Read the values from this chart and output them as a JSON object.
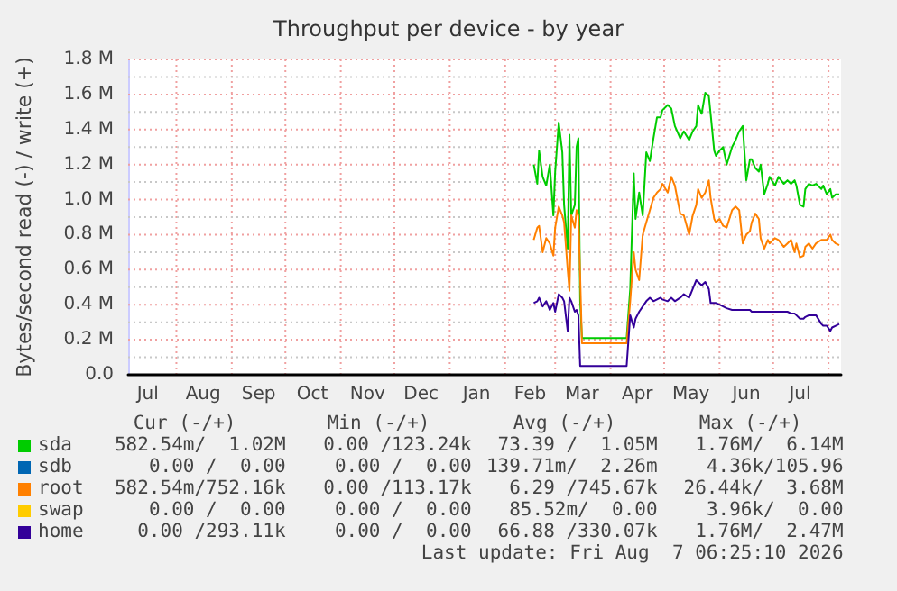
{
  "chart_data": {
    "type": "line",
    "title": "Throughput per device - by year",
    "ylabel": "Bytes/second read (-) / write (+)",
    "x": [
      "2026-02-17",
      "2026-02-19",
      "2026-02-20",
      "2026-02-22",
      "2026-02-24",
      "2026-02-26",
      "2026-02-28",
      "2026-03-01",
      "2026-03-03",
      "2026-03-05",
      "2026-03-06",
      "2026-03-08",
      "2026-03-09",
      "2026-03-10",
      "2026-03-12",
      "2026-03-13",
      "2026-03-14",
      "2026-03-15",
      "2026-03-16",
      "2026-04-10",
      "2026-04-12",
      "2026-04-14",
      "2026-04-15",
      "2026-04-17",
      "2026-04-19",
      "2026-04-21",
      "2026-04-23",
      "2026-04-25",
      "2026-04-27",
      "2026-04-29",
      "2026-04-30",
      "2026-05-03",
      "2026-05-05",
      "2026-05-07",
      "2026-05-10",
      "2026-05-12",
      "2026-05-15",
      "2026-05-17",
      "2026-05-19",
      "2026-05-20",
      "2026-05-22",
      "2026-05-24",
      "2026-05-26",
      "2026-05-27",
      "2026-05-29",
      "2026-05-30",
      "2026-06-01",
      "2026-06-03",
      "2026-06-05",
      "2026-06-08",
      "2026-06-10",
      "2026-06-12",
      "2026-06-14",
      "2026-06-16",
      "2026-06-18",
      "2026-06-19",
      "2026-06-21",
      "2026-06-23",
      "2026-06-24",
      "2026-06-26",
      "2026-06-28",
      "2026-06-29",
      "2026-07-02",
      "2026-07-04",
      "2026-07-07",
      "2026-07-09",
      "2026-07-11",
      "2026-07-13",
      "2026-07-14",
      "2026-07-16",
      "2026-07-18",
      "2026-07-19",
      "2026-07-21",
      "2026-07-23",
      "2026-07-25",
      "2026-07-28",
      "2026-07-29",
      "2026-07-31",
      "2026-08-02",
      "2026-08-03",
      "2026-08-05",
      "2026-08-07"
    ],
    "series": [
      {
        "name": "sda",
        "color": "#00cc00",
        "values": [
          1200000,
          1090000,
          1280000,
          1130000,
          1080000,
          1200000,
          910000,
          1160000,
          1440000,
          1270000,
          970000,
          720000,
          1370000,
          910000,
          970000,
          1300000,
          1350000,
          420000,
          210000,
          210000,
          490000,
          1150000,
          890000,
          1040000,
          910000,
          1270000,
          1220000,
          1350000,
          1470000,
          1470000,
          1510000,
          1540000,
          1520000,
          1420000,
          1350000,
          1390000,
          1340000,
          1390000,
          1420000,
          1540000,
          1490000,
          1610000,
          1590000,
          1490000,
          1280000,
          1250000,
          1280000,
          1300000,
          1200000,
          1300000,
          1340000,
          1390000,
          1420000,
          1110000,
          1230000,
          1230000,
          1180000,
          1160000,
          1200000,
          1030000,
          1090000,
          1130000,
          1080000,
          1130000,
          1090000,
          1110000,
          1090000,
          1110000,
          1080000,
          970000,
          960000,
          1060000,
          1090000,
          1080000,
          1090000,
          1060000,
          1080000,
          1030000,
          1060000,
          1010000,
          1030000,
          1030000
        ]
      },
      {
        "name": "sdb",
        "color": "#0066b3",
        "values": [
          null,
          null,
          null,
          null,
          null,
          null,
          null,
          null,
          null,
          null,
          null,
          null,
          null,
          null,
          null,
          null,
          null,
          null,
          null,
          null,
          null,
          null,
          null,
          null,
          null,
          null,
          null,
          null,
          null,
          null,
          null,
          null,
          null,
          null,
          null,
          null,
          null,
          null,
          null,
          null,
          null,
          null,
          null,
          null,
          null,
          null,
          null,
          null,
          null,
          null,
          null,
          null,
          null,
          null,
          null,
          null,
          null,
          null,
          null,
          null,
          null,
          null,
          null,
          null,
          null,
          null,
          null,
          null,
          null,
          null,
          null,
          null,
          null,
          null,
          null,
          null,
          null,
          null,
          null,
          null,
          null,
          null
        ]
      },
      {
        "name": "root",
        "color": "#ff8000",
        "values": [
          770000,
          840000,
          850000,
          700000,
          780000,
          750000,
          680000,
          840000,
          960000,
          910000,
          870000,
          600000,
          480000,
          910000,
          840000,
          940000,
          910000,
          560000,
          180000,
          180000,
          420000,
          700000,
          600000,
          540000,
          800000,
          870000,
          940000,
          1010000,
          1040000,
          1060000,
          1090000,
          1040000,
          1130000,
          1080000,
          920000,
          910000,
          800000,
          910000,
          970000,
          1060000,
          1010000,
          1040000,
          1110000,
          1010000,
          890000,
          870000,
          890000,
          850000,
          840000,
          940000,
          960000,
          940000,
          750000,
          800000,
          820000,
          870000,
          920000,
          890000,
          780000,
          720000,
          770000,
          750000,
          780000,
          770000,
          730000,
          750000,
          770000,
          700000,
          750000,
          670000,
          680000,
          730000,
          750000,
          720000,
          750000,
          770000,
          770000,
          770000,
          800000,
          770000,
          750000,
          740000
        ]
      },
      {
        "name": "swap",
        "color": "#ffcc00",
        "values": [
          null,
          null,
          null,
          null,
          null,
          null,
          null,
          null,
          null,
          null,
          null,
          null,
          null,
          null,
          null,
          null,
          null,
          null,
          null,
          null,
          null,
          null,
          null,
          null,
          null,
          null,
          null,
          null,
          null,
          null,
          null,
          null,
          null,
          null,
          null,
          null,
          null,
          null,
          null,
          null,
          null,
          null,
          null,
          null,
          null,
          null,
          null,
          null,
          null,
          null,
          null,
          null,
          null,
          null,
          null,
          null,
          null,
          null,
          null,
          null,
          null,
          null,
          null,
          null,
          null,
          null,
          null,
          null,
          null,
          null,
          null,
          null,
          null,
          null,
          null,
          null,
          null,
          null,
          null,
          null,
          null,
          null
        ]
      },
      {
        "name": "home",
        "color": "#330099",
        "values": [
          410000,
          420000,
          440000,
          390000,
          420000,
          370000,
          410000,
          360000,
          460000,
          440000,
          420000,
          250000,
          440000,
          420000,
          360000,
          370000,
          340000,
          50000,
          50000,
          50000,
          340000,
          270000,
          320000,
          360000,
          390000,
          420000,
          440000,
          420000,
          430000,
          440000,
          430000,
          420000,
          440000,
          420000,
          440000,
          460000,
          440000,
          490000,
          540000,
          530000,
          510000,
          530000,
          490000,
          410000,
          410000,
          410000,
          400000,
          390000,
          380000,
          370000,
          370000,
          370000,
          370000,
          370000,
          370000,
          360000,
          360000,
          360000,
          360000,
          360000,
          360000,
          360000,
          360000,
          360000,
          360000,
          360000,
          350000,
          350000,
          340000,
          320000,
          320000,
          330000,
          340000,
          340000,
          340000,
          290000,
          280000,
          280000,
          250000,
          270000,
          280000,
          290000
        ]
      }
    ],
    "xlim": [
      "2025-07-05",
      "2026-08-08"
    ],
    "xticks": [
      {
        "value": "2025-07-16",
        "label": "Jul"
      },
      {
        "value": "2025-08-01",
        "label": null
      },
      {
        "value": "2025-08-16",
        "label": "Aug"
      },
      {
        "value": "2025-09-01",
        "label": null
      },
      {
        "value": "2025-09-16",
        "label": "Sep"
      },
      {
        "value": "2025-10-01",
        "label": null
      },
      {
        "value": "2025-10-16",
        "label": "Oct"
      },
      {
        "value": "2025-11-01",
        "label": null
      },
      {
        "value": "2025-11-16",
        "label": "Nov"
      },
      {
        "value": "2025-12-01",
        "label": null
      },
      {
        "value": "2025-12-16",
        "label": "Dec"
      },
      {
        "value": "2026-01-01",
        "label": null
      },
      {
        "value": "2026-01-16",
        "label": "Jan"
      },
      {
        "value": "2026-02-01",
        "label": null
      },
      {
        "value": "2026-02-15",
        "label": "Feb"
      },
      {
        "value": "2026-03-01",
        "label": null
      },
      {
        "value": "2026-03-16",
        "label": "Mar"
      },
      {
        "value": "2026-04-01",
        "label": null
      },
      {
        "value": "2026-04-16",
        "label": "Apr"
      },
      {
        "value": "2026-05-01",
        "label": null
      },
      {
        "value": "2026-05-16",
        "label": "May"
      },
      {
        "value": "2026-06-01",
        "label": null
      },
      {
        "value": "2026-06-16",
        "label": "Jun"
      },
      {
        "value": "2026-07-01",
        "label": null
      },
      {
        "value": "2026-07-16",
        "label": "Jul"
      },
      {
        "value": "2026-08-01",
        "label": null
      }
    ],
    "ylim": [
      0,
      1800000
    ],
    "yticks": [
      {
        "value": 0,
        "label": "0.0"
      },
      {
        "value": 100000,
        "label": null
      },
      {
        "value": 200000,
        "label": "0.2 M"
      },
      {
        "value": 300000,
        "label": null
      },
      {
        "value": 400000,
        "label": "0.4 M"
      },
      {
        "value": 500000,
        "label": null
      },
      {
        "value": 600000,
        "label": "0.6 M"
      },
      {
        "value": 700000,
        "label": null
      },
      {
        "value": 800000,
        "label": "0.8 M"
      },
      {
        "value": 900000,
        "label": null
      },
      {
        "value": 1000000,
        "label": "1.0 M"
      },
      {
        "value": 1100000,
        "label": null
      },
      {
        "value": 1200000,
        "label": "1.2 M"
      },
      {
        "value": 1300000,
        "label": null
      },
      {
        "value": 1400000,
        "label": "1.4 M"
      },
      {
        "value": 1500000,
        "label": null
      },
      {
        "value": 1600000,
        "label": "1.6 M"
      },
      {
        "value": 1700000,
        "label": null
      },
      {
        "value": 1800000,
        "label": "1.8 M"
      }
    ],
    "grid": true,
    "legend": "bottom",
    "annotations": [
      "Cur (-/+)",
      "Min (-/+)",
      "Avg (-/+)",
      "Max (-/+)",
      "582.54m/  1.02M",
      "0.00 /123.24k",
      "73.39 /  1.05M",
      "1.76M/  6.14M",
      "0.00 /  0.00",
      "0.00 /  0.00",
      "139.71m/  2.26m",
      "4.36k/105.96",
      "582.54m/752.16k",
      "0.00 /113.17k",
      "6.29 /745.67k",
      "26.44k/  3.68M",
      "0.00 /  0.00",
      "0.00 /  0.00",
      "85.52m/  0.00",
      "3.96k/  0.00",
      "0.00 /293.11k",
      "0.00 /  0.00",
      "66.88 /330.07k",
      "1.76M/  2.47M",
      "Last update: Fri Aug  7 06:25:10 2026"
    ]
  }
}
